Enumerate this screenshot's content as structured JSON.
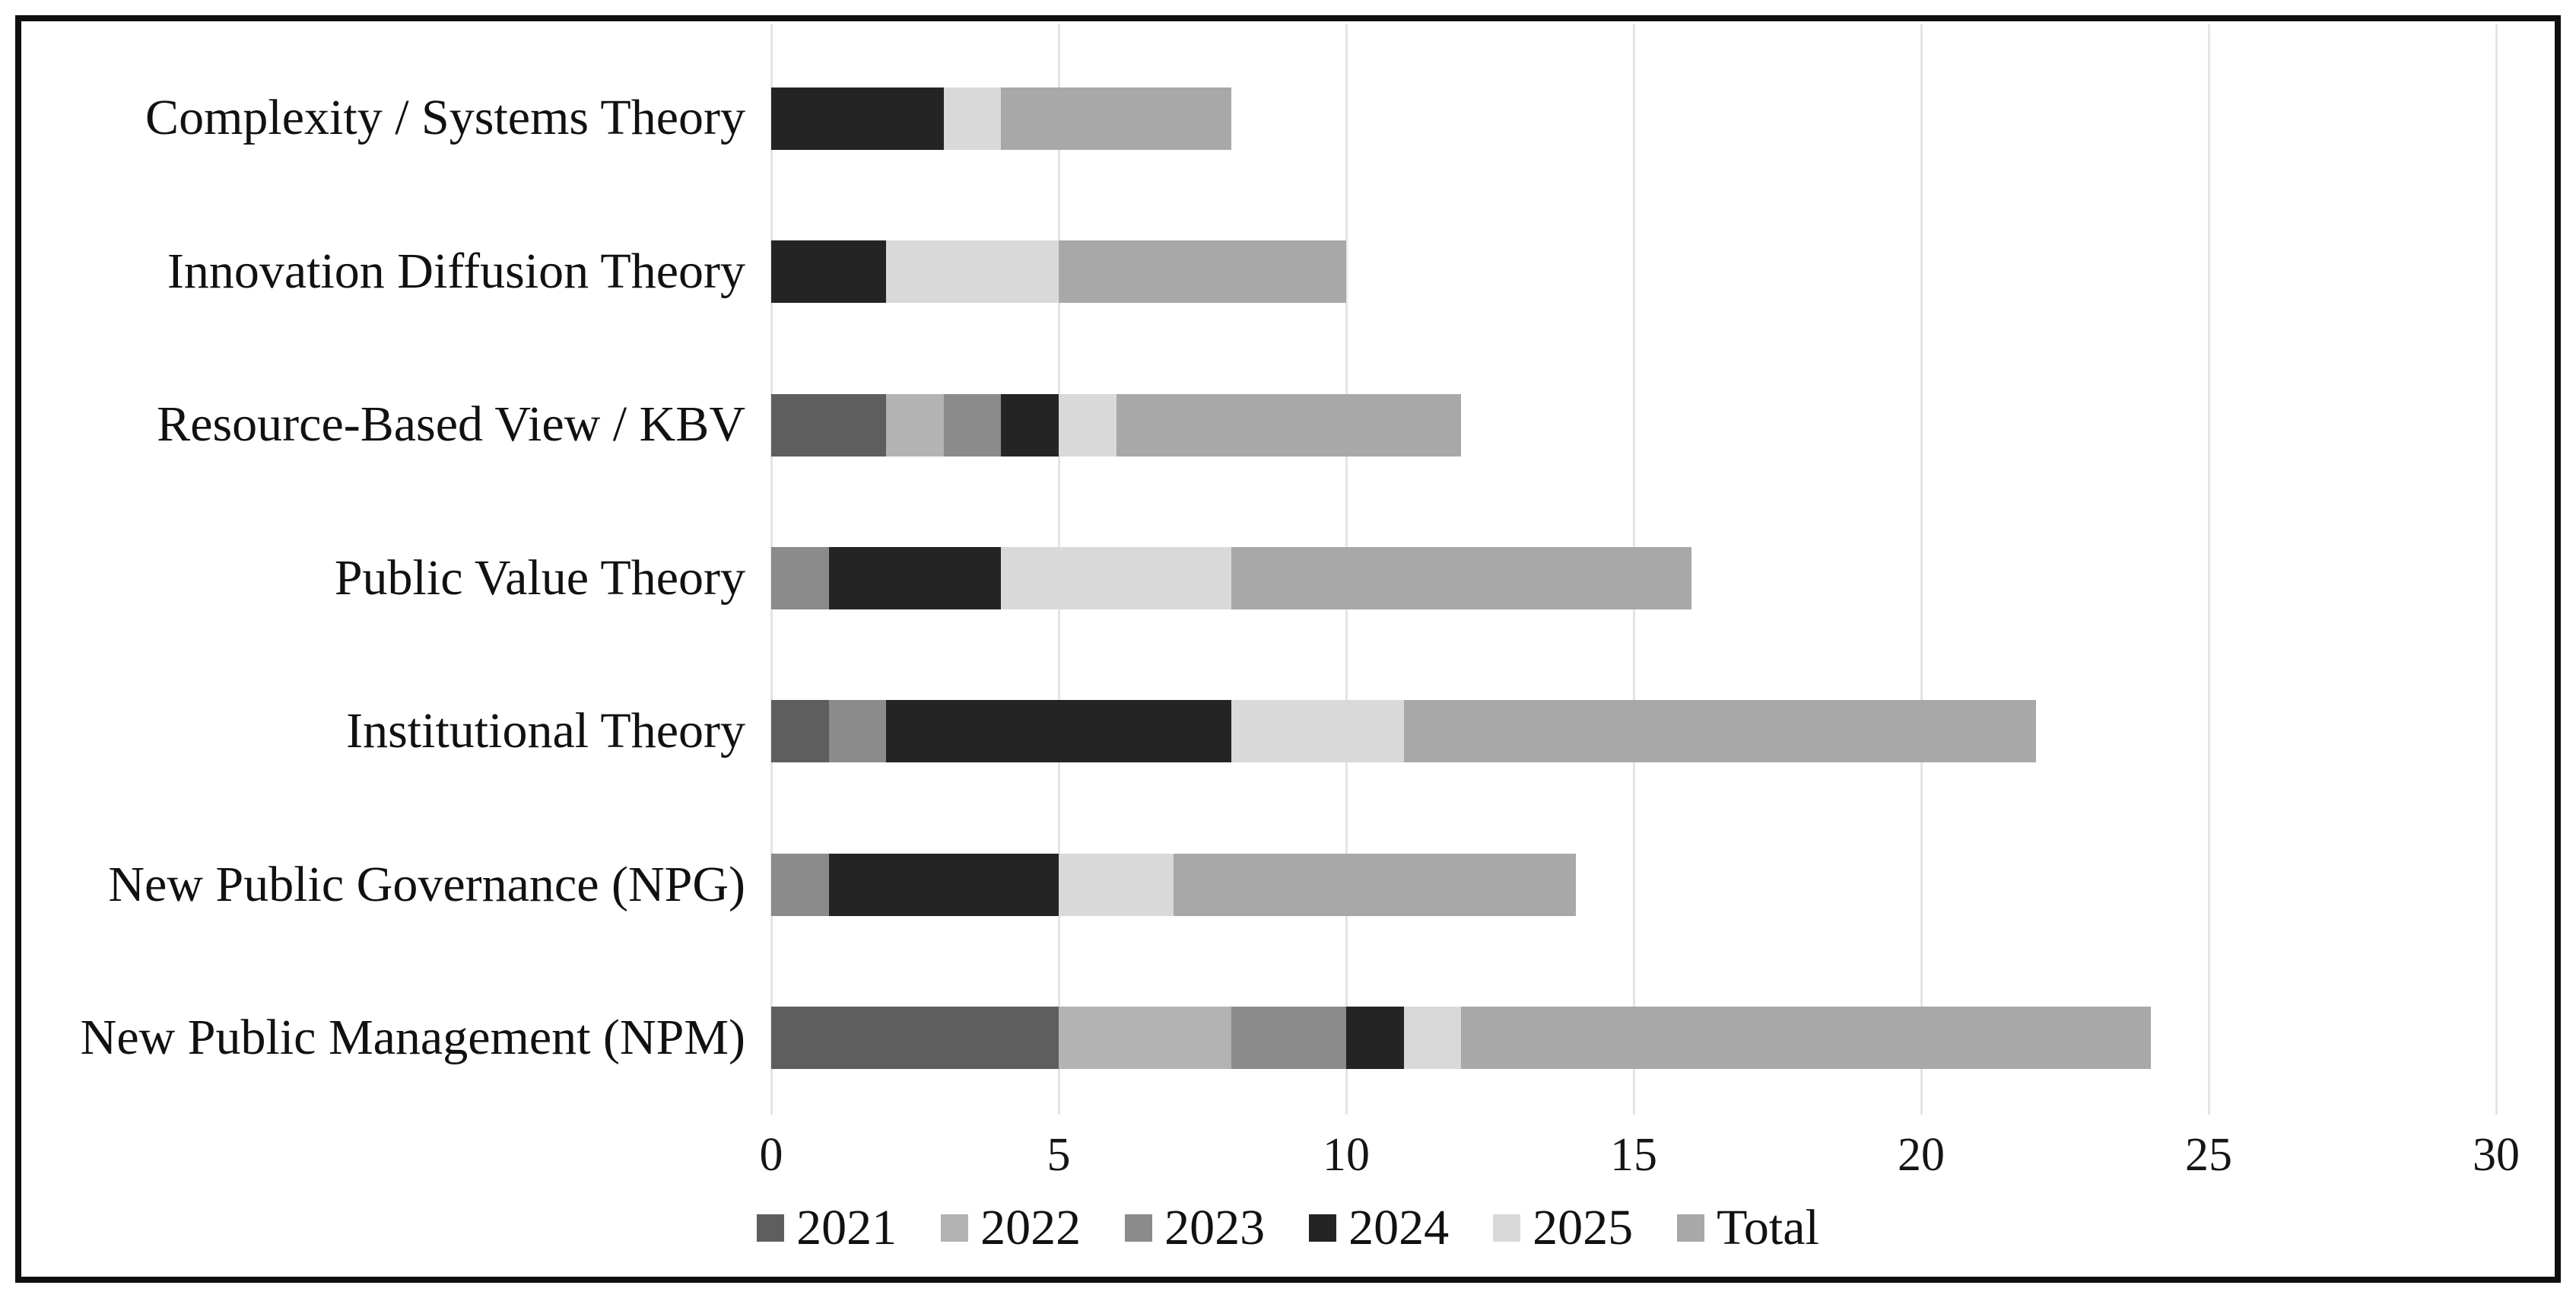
{
  "figure": {
    "background": "#ffffff",
    "border_color": "#0f0f0f",
    "text_color": "#111111",
    "gridline_color": "#e4e4e4"
  },
  "chart_data": {
    "type": "bar",
    "orientation": "horizontal",
    "title": "",
    "xlabel": "",
    "ylabel": "",
    "xlim": [
      0,
      30
    ],
    "xticks": [
      0,
      5,
      10,
      15,
      20,
      25,
      30
    ],
    "grid": "vertical gridlines on",
    "legend_position": "bottom-center",
    "categories": [
      "Complexity / Systems Theory",
      "Innovation Diffusion Theory",
      "Resource-Based View / KBV",
      "Public Value Theory",
      "Institutional Theory",
      "New Public Governance (NPG)",
      "New Public Management (NPM)"
    ],
    "series": [
      {
        "name": "2021",
        "color": "#5e5e5e",
        "values": [
          0,
          0,
          2,
          0,
          1,
          0,
          5
        ]
      },
      {
        "name": "2022",
        "color": "#b3b3b3",
        "values": [
          0,
          0,
          1,
          0,
          0,
          0,
          3
        ]
      },
      {
        "name": "2023",
        "color": "#8b8b8b",
        "values": [
          0,
          0,
          1,
          1,
          1,
          1,
          2
        ]
      },
      {
        "name": "2024",
        "color": "#242424",
        "values": [
          3,
          2,
          1,
          3,
          6,
          4,
          1
        ]
      },
      {
        "name": "2025",
        "color": "#d9d9d9",
        "values": [
          1,
          3,
          1,
          4,
          3,
          2,
          1
        ]
      },
      {
        "name": "Total",
        "color": "#a8a8a8",
        "values": [
          4,
          5,
          6,
          8,
          11,
          7,
          12
        ]
      }
    ],
    "bar_end_values": [
      8,
      10,
      12,
      16,
      22,
      14,
      24
    ],
    "legend": [
      "2021",
      "2022",
      "2023",
      "2024",
      "2025",
      "Total"
    ]
  }
}
